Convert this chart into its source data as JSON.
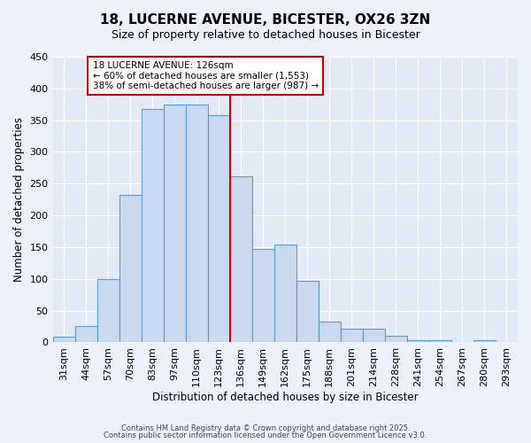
{
  "title": "18, LUCERNE AVENUE, BICESTER, OX26 3ZN",
  "subtitle": "Size of property relative to detached houses in Bicester",
  "xlabel": "Distribution of detached houses by size in Bicester",
  "ylabel": "Number of detached properties",
  "bin_labels": [
    "31sqm",
    "44sqm",
    "57sqm",
    "70sqm",
    "83sqm",
    "97sqm",
    "110sqm",
    "123sqm",
    "136sqm",
    "149sqm",
    "162sqm",
    "175sqm",
    "188sqm",
    "201sqm",
    "214sqm",
    "228sqm",
    "241sqm",
    "254sqm",
    "267sqm",
    "280sqm",
    "293sqm"
  ],
  "bar_values": [
    9,
    26,
    100,
    232,
    368,
    374,
    374,
    358,
    261,
    147,
    154,
    97,
    33,
    21,
    21,
    10,
    4,
    4,
    1,
    3,
    0
  ],
  "bar_color": "#c9d9f0",
  "bar_edge_color": "#5b9bd5",
  "vline_color": "#cc0000",
  "vline_index": 7.5,
  "ylim": [
    0,
    450
  ],
  "yticks": [
    0,
    50,
    100,
    150,
    200,
    250,
    300,
    350,
    400,
    450
  ],
  "annotation_title": "18 LUCERNE AVENUE: 126sqm",
  "annotation_line1": "← 60% of detached houses are smaller (1,553)",
  "annotation_line2": "38% of semi-detached houses are larger (987) →",
  "annotation_box_color": "#ffffff",
  "annotation_box_edge_color": "#cc0000",
  "footer1": "Contains HM Land Registry data © Crown copyright and database right 2025.",
  "footer2": "Contains public sector information licensed under the Open Government Licence v3.0.",
  "bg_color": "#edf1f9",
  "plot_bg_color": "#e4eaf5"
}
